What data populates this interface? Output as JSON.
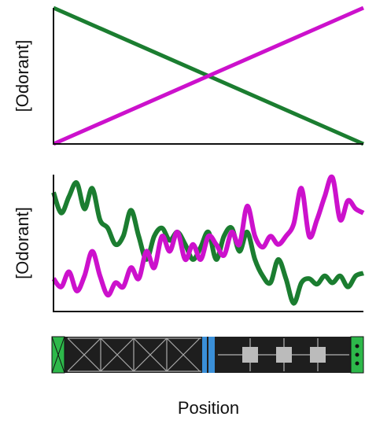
{
  "chart_data": [
    {
      "type": "line",
      "ylabel": "[Odorant]",
      "x": [
        0,
        100
      ],
      "xlim": [
        0,
        100
      ],
      "ylim": [
        0,
        100
      ],
      "series": [
        {
          "color": "#1b7d30",
          "values": [
            100,
            0
          ]
        },
        {
          "color": "#cc11cc",
          "values": [
            0,
            100
          ]
        }
      ]
    },
    {
      "type": "line",
      "ylabel": "[Odorant]",
      "xlabel": "Position",
      "x": [
        0,
        2.5,
        5,
        7.5,
        10,
        12.5,
        15,
        17.5,
        20,
        22.5,
        25,
        27.5,
        30,
        32.5,
        35,
        37.5,
        40,
        42.5,
        45,
        47.5,
        50,
        52.5,
        55,
        57.5,
        60,
        62.5,
        65,
        67.5,
        70,
        72.5,
        75,
        77.5,
        80,
        82.5,
        85,
        87.5,
        90,
        92.5,
        95,
        97.5,
        100
      ],
      "xlim": [
        0,
        100
      ],
      "ylim": [
        0,
        100
      ],
      "series": [
        {
          "color": "#1b7d30",
          "values": [
            87,
            72,
            84,
            94,
            75,
            90,
            67,
            61,
            49,
            55,
            74,
            55,
            38,
            55,
            61,
            52,
            58,
            49,
            38,
            47,
            58,
            38,
            55,
            61,
            44,
            58,
            38,
            26,
            21,
            38,
            24,
            6,
            21,
            24,
            20,
            26,
            21,
            26,
            18,
            26,
            28
          ]
        },
        {
          "color": "#cc11cc",
          "values": [
            24,
            18,
            29,
            15,
            26,
            44,
            26,
            12,
            21,
            18,
            32,
            24,
            44,
            32,
            55,
            44,
            58,
            38,
            49,
            38,
            55,
            49,
            41,
            58,
            49,
            77,
            55,
            47,
            55,
            49,
            55,
            64,
            90,
            55,
            67,
            84,
            98,
            67,
            81,
            75,
            72
          ]
        }
      ]
    }
  ]
}
